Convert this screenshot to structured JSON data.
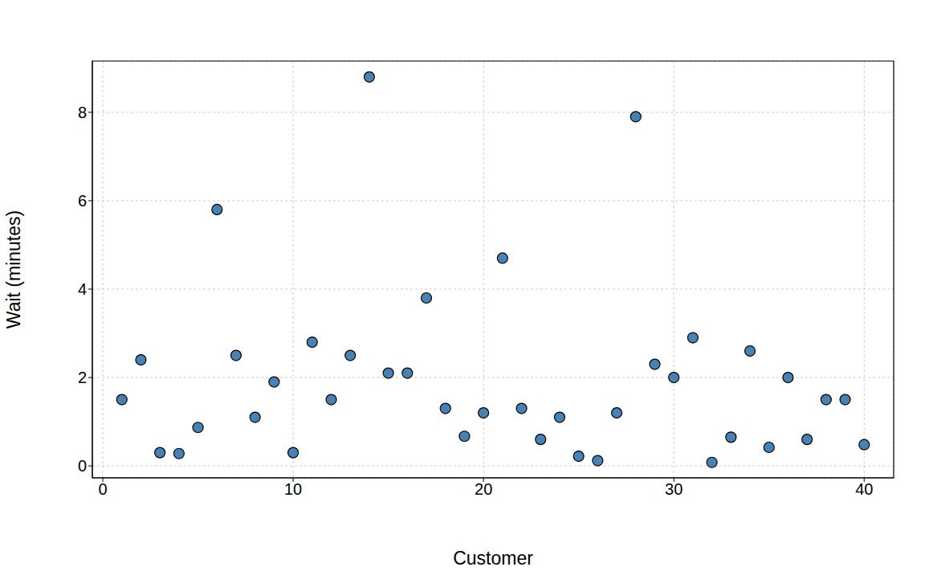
{
  "chart_data": {
    "type": "scatter",
    "x_label": "Customer",
    "y_label": "Wait (minutes)",
    "x": [
      1,
      2,
      3,
      4,
      5,
      6,
      7,
      8,
      9,
      10,
      11,
      12,
      13,
      14,
      15,
      16,
      17,
      18,
      19,
      20,
      21,
      22,
      23,
      24,
      25,
      26,
      27,
      28,
      29,
      30,
      31,
      32,
      33,
      34,
      35,
      36,
      37,
      38,
      39,
      40
    ],
    "values": [
      1.5,
      2.4,
      0.3,
      0.28,
      0.87,
      5.8,
      2.5,
      1.1,
      1.9,
      0.3,
      2.8,
      1.5,
      2.5,
      8.8,
      2.1,
      2.1,
      3.8,
      1.3,
      0.67,
      1.2,
      4.7,
      1.3,
      0.6,
      1.1,
      0.22,
      0.12,
      1.2,
      7.9,
      2.3,
      2.0,
      2.9,
      0.08,
      0.65,
      2.6,
      0.42,
      2.0,
      0.6,
      1.5,
      1.5,
      0.48
    ],
    "color": "#4682b4",
    "marker": "circle",
    "xlim": [
      -0.55,
      41.55
    ],
    "ylim": [
      -0.27,
      9.16
    ],
    "xticks": [
      0,
      10,
      20,
      30,
      40
    ],
    "yticks": [
      0,
      2,
      4,
      6,
      8
    ],
    "grid": true
  }
}
